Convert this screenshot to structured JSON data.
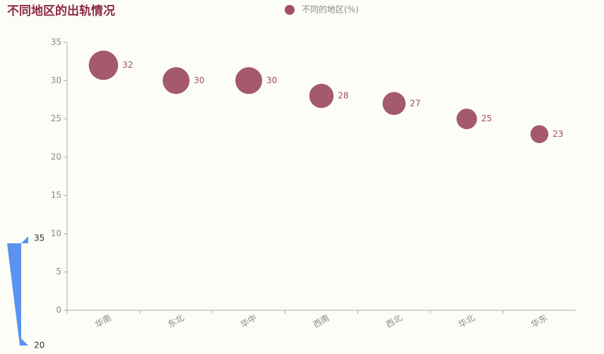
{
  "chart_data": {
    "type": "scatter",
    "title": "不同地区的出轨情况",
    "categories": [
      "华南",
      "东北",
      "华中",
      "西南",
      "西北",
      "华北",
      "华东"
    ],
    "series": [
      {
        "name": "不同的地区(%)",
        "color": "#a05064",
        "values": [
          32,
          30,
          30,
          28,
          27,
          25,
          23
        ]
      }
    ],
    "ylim": [
      0,
      35
    ],
    "yticks": [
      0,
      5,
      10,
      15,
      20,
      25,
      30,
      35
    ],
    "visual_map": {
      "min": 20,
      "max": 35,
      "color": "#5b93ef"
    }
  }
}
